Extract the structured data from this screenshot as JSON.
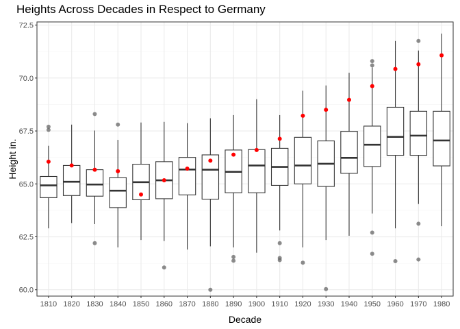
{
  "chart_data": {
    "type": "boxplot",
    "title": "Heights Across Decades in Respect to Germany",
    "xlabel": "Decade",
    "ylabel": "Height in.",
    "ylim": [
      59.7,
      72.65
    ],
    "yticks": [
      60.0,
      62.5,
      65.0,
      67.5,
      70.0,
      72.5
    ],
    "ytick_labels": [
      "60.0",
      "62.5",
      "65.0",
      "67.5",
      "70.0",
      "72.5"
    ],
    "grid": true,
    "categories": [
      "1810",
      "1820",
      "1830",
      "1840",
      "1850",
      "1860",
      "1870",
      "1880",
      "1890",
      "1900",
      "1910",
      "1920",
      "1930",
      "1940",
      "1950",
      "1960",
      "1970",
      "1980"
    ],
    "boxes": [
      {
        "lower_whisker": 62.9,
        "q1": 64.35,
        "median": 64.93,
        "q3": 65.35,
        "upper_whisker": 66.8,
        "outliers": [
          67.55,
          67.7
        ]
      },
      {
        "lower_whisker": 63.15,
        "q1": 64.45,
        "median": 65.1,
        "q3": 65.87,
        "upper_whisker": 67.8,
        "outliers": []
      },
      {
        "lower_whisker": 63.1,
        "q1": 64.42,
        "median": 64.97,
        "q3": 65.67,
        "upper_whisker": 67.52,
        "outliers": [
          68.3,
          62.2
        ]
      },
      {
        "lower_whisker": 62.0,
        "q1": 63.88,
        "median": 64.68,
        "q3": 65.3,
        "upper_whisker": 67.08,
        "outliers": [
          67.8
        ]
      },
      {
        "lower_whisker": 62.35,
        "q1": 64.25,
        "median": 65.08,
        "q3": 65.93,
        "upper_whisker": 67.9,
        "outliers": []
      },
      {
        "lower_whisker": 62.3,
        "q1": 64.3,
        "median": 65.17,
        "q3": 66.05,
        "upper_whisker": 67.93,
        "outliers": [
          61.05
        ]
      },
      {
        "lower_whisker": 61.9,
        "q1": 64.48,
        "median": 65.68,
        "q3": 66.25,
        "upper_whisker": 67.87,
        "outliers": []
      },
      {
        "lower_whisker": 62.05,
        "q1": 64.28,
        "median": 65.67,
        "q3": 66.37,
        "upper_whisker": 68.1,
        "outliers": [
          60.0
        ]
      },
      {
        "lower_whisker": 62.0,
        "q1": 64.58,
        "median": 65.57,
        "q3": 66.6,
        "upper_whisker": 68.25,
        "outliers": [
          61.37,
          61.55
        ]
      },
      {
        "lower_whisker": 61.75,
        "q1": 64.58,
        "median": 65.87,
        "q3": 66.62,
        "upper_whisker": 69.0,
        "outliers": []
      },
      {
        "lower_whisker": 62.8,
        "q1": 64.93,
        "median": 65.8,
        "q3": 66.68,
        "upper_whisker": 68.25,
        "outliers": [
          62.2,
          61.5,
          61.4
        ]
      },
      {
        "lower_whisker": 62.0,
        "q1": 65.0,
        "median": 65.87,
        "q3": 67.2,
        "upper_whisker": 69.4,
        "outliers": [
          61.28
        ]
      },
      {
        "lower_whisker": 62.35,
        "q1": 64.88,
        "median": 65.95,
        "q3": 67.03,
        "upper_whisker": 69.65,
        "outliers": [
          60.03
        ]
      },
      {
        "lower_whisker": 62.55,
        "q1": 65.5,
        "median": 66.23,
        "q3": 67.48,
        "upper_whisker": 70.25,
        "outliers": []
      },
      {
        "lower_whisker": 63.6,
        "q1": 65.82,
        "median": 66.85,
        "q3": 67.73,
        "upper_whisker": 70.5,
        "outliers": [
          70.6,
          70.8,
          62.7,
          61.7
        ]
      },
      {
        "lower_whisker": 62.9,
        "q1": 66.35,
        "median": 67.22,
        "q3": 68.62,
        "upper_whisker": 71.75,
        "outliers": [
          61.35
        ]
      },
      {
        "lower_whisker": 64.05,
        "q1": 66.35,
        "median": 67.28,
        "q3": 68.43,
        "upper_whisker": 71.3,
        "outliers": [
          71.75,
          63.12,
          61.43
        ]
      },
      {
        "lower_whisker": 63.0,
        "q1": 65.85,
        "median": 67.05,
        "q3": 68.43,
        "upper_whisker": 72.1,
        "outliers": []
      }
    ],
    "series": [
      {
        "values": [
          66.05,
          65.87,
          65.67,
          65.6,
          64.5,
          65.17,
          65.72,
          66.1,
          66.38,
          66.6,
          67.13,
          68.22,
          68.5,
          68.97,
          69.62,
          70.43,
          70.65,
          71.07
        ],
        "color": "#ff0000"
      }
    ],
    "colors": {
      "box_fill": "#ffffff",
      "box_line": "#333333",
      "outlier": "#666666",
      "grid_major": "#ebebeb",
      "grid_minor": "#f5f5f5",
      "panel_border": "#333333"
    }
  }
}
